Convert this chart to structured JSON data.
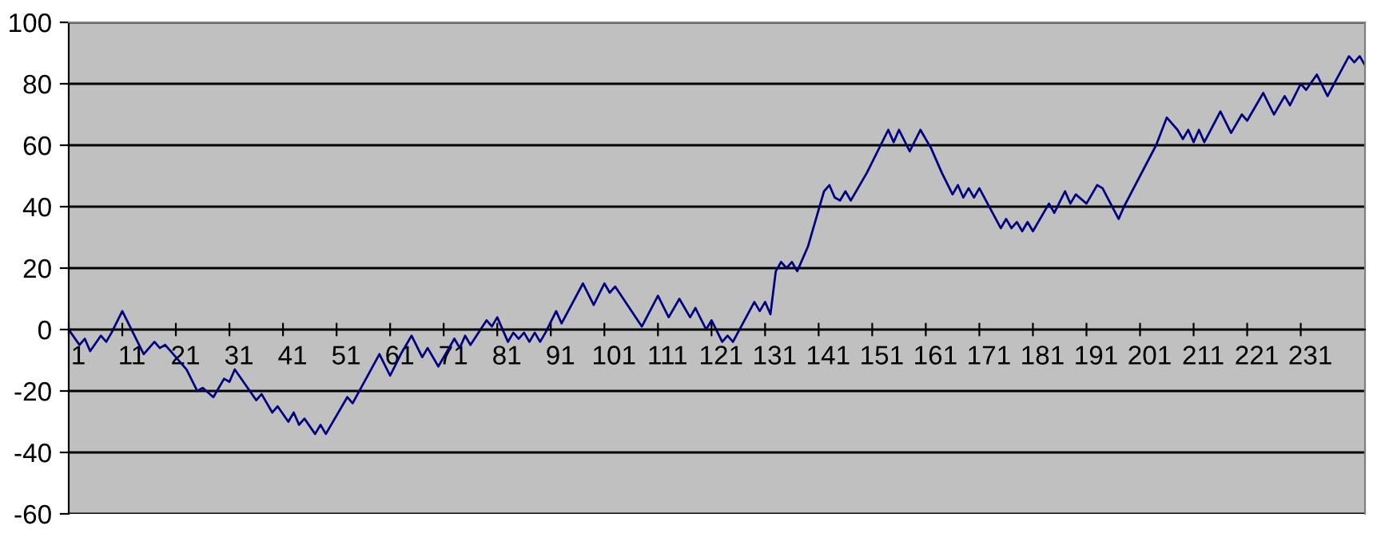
{
  "chart_data": {
    "type": "line",
    "x": [
      1,
      3,
      4,
      5,
      7,
      8,
      9,
      11,
      15,
      17,
      18,
      19,
      20,
      23,
      25,
      26,
      28,
      30,
      31,
      32,
      36,
      37,
      39,
      40,
      42,
      43,
      44,
      45,
      47,
      48,
      49,
      53,
      54,
      59,
      61,
      63,
      65,
      67,
      68,
      70,
      73,
      74,
      75,
      76,
      79,
      80,
      81,
      83,
      84,
      85,
      86,
      87,
      88,
      89,
      90,
      92,
      93,
      97,
      99,
      101,
      102,
      103,
      108,
      111,
      113,
      115,
      117,
      118,
      120,
      121,
      123,
      124,
      125,
      129,
      130,
      131,
      132,
      133,
      134,
      135,
      136,
      137,
      139,
      142,
      143,
      144,
      145,
      146,
      147,
      150,
      154,
      155,
      156,
      158,
      160,
      162,
      164,
      166,
      167,
      168,
      169,
      170,
      171,
      175,
      176,
      177,
      178,
      179,
      180,
      181,
      184,
      185,
      187,
      188,
      189,
      191,
      193,
      194,
      197,
      198,
      204,
      206,
      208,
      209,
      210,
      211,
      212,
      213,
      216,
      218,
      220,
      221,
      224,
      226,
      228,
      229,
      231,
      232,
      234,
      236,
      240,
      241,
      242,
      243
    ],
    "series": [
      {
        "color": "#000080",
        "values": [
          0,
          -5,
          -3,
          -7,
          -2,
          -4,
          -1,
          6,
          -8,
          -4,
          -6,
          -5,
          -7,
          -13,
          -20,
          -19,
          -22,
          -16,
          -17,
          -13,
          -23,
          -21,
          -27,
          -25,
          -30,
          -27,
          -31,
          -29,
          -34,
          -31,
          -34,
          -22,
          -24,
          -8,
          -15,
          -8,
          -2,
          -9,
          -6,
          -12,
          -3,
          -6,
          -2,
          -5,
          3,
          1,
          4,
          -4,
          -1,
          -3,
          -1,
          -4,
          -1,
          -4,
          -1,
          6,
          2,
          15,
          8,
          15,
          12,
          14,
          1,
          11,
          4,
          10,
          4,
          7,
          0,
          3,
          -4,
          -2,
          -4,
          9,
          6,
          9,
          5,
          19,
          22,
          20,
          22,
          19,
          27,
          45,
          47,
          43,
          42,
          45,
          42,
          51,
          65,
          61,
          65,
          58,
          65,
          59,
          51,
          44,
          47,
          43,
          46,
          43,
          46,
          33,
          36,
          33,
          35,
          32,
          35,
          32,
          41,
          38,
          45,
          41,
          44,
          41,
          47,
          46,
          36,
          40,
          60,
          69,
          65,
          62,
          65,
          61,
          65,
          61,
          71,
          64,
          70,
          68,
          77,
          70,
          76,
          73,
          80,
          78,
          83,
          76,
          89,
          87,
          89,
          86
        ]
      }
    ],
    "xlim": [
      1,
      243
    ],
    "xticks": [
      1,
      11,
      21,
      31,
      41,
      51,
      61,
      71,
      81,
      91,
      101,
      111,
      121,
      131,
      141,
      151,
      161,
      171,
      181,
      191,
      201,
      211,
      221,
      231
    ],
    "ylim": [
      -60,
      100
    ],
    "yticks": [
      -60,
      -40,
      -20,
      0,
      20,
      40,
      60,
      80,
      100
    ],
    "grid": "y",
    "legend": false
  }
}
